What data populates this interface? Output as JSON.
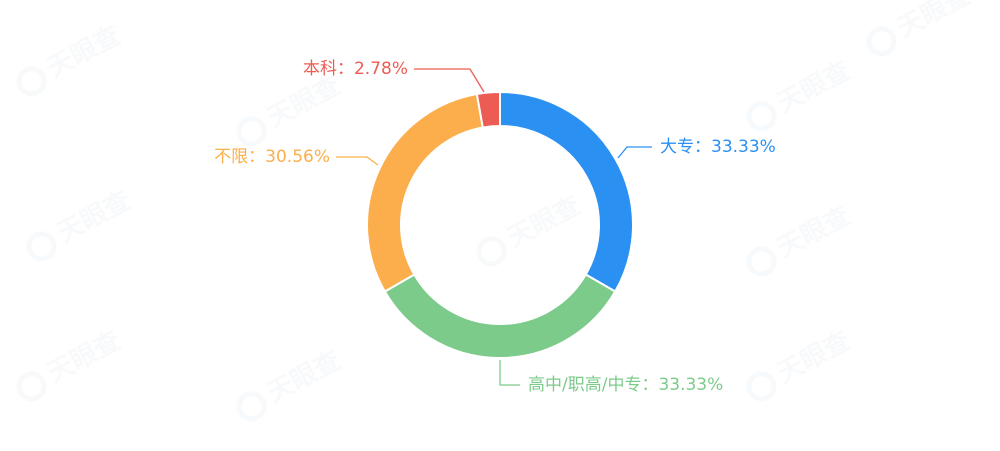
{
  "watermark": {
    "text": "天眼查"
  },
  "chart_data": {
    "type": "pie",
    "variant": "donut",
    "title": "",
    "slices": [
      {
        "name": "大专",
        "label": "大专：33.33%",
        "value": 33.33,
        "color": "#2a90f2"
      },
      {
        "name": "高中/职高/中专",
        "label": "高中/职高/中专：33.33%",
        "value": 33.33,
        "color": "#7ccb8a"
      },
      {
        "name": "不限",
        "label": "不限：30.56%",
        "value": 30.56,
        "color": "#fcae4c"
      },
      {
        "name": "本科",
        "label": "本科：2.78%",
        "value": 2.78,
        "color": "#ec5c55"
      }
    ]
  }
}
